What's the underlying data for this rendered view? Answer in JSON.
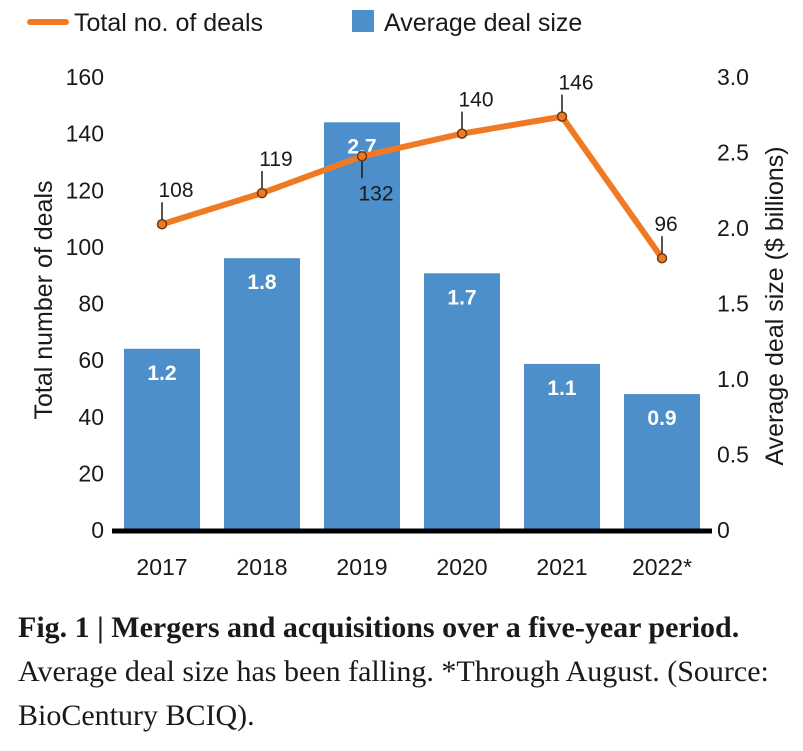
{
  "chart_data": {
    "type": "bar",
    "categories": [
      "2017",
      "2018",
      "2019",
      "2020",
      "2021",
      "2022*"
    ],
    "series": [
      {
        "name": "Total no. of deals",
        "type": "line",
        "axis": "left",
        "values": [
          108,
          119,
          132,
          140,
          146,
          96
        ],
        "labels": [
          "108",
          "119",
          "132",
          "140",
          "146",
          "96"
        ]
      },
      {
        "name": "Average deal size",
        "type": "bar",
        "axis": "right",
        "values": [
          1.2,
          1.8,
          2.7,
          1.7,
          1.1,
          0.9
        ],
        "labels": [
          "1.2",
          "1.8",
          "2.7",
          "1.7",
          "1.1",
          "0.9"
        ]
      }
    ],
    "ylabel": "Total number of deals",
    "y2label": "Average deal size  ($ billions)",
    "ylim": [
      0,
      160
    ],
    "y2lim": [
      0,
      3.0
    ],
    "yticks": [
      "0",
      "20",
      "40",
      "60",
      "80",
      "100",
      "120",
      "140",
      "160"
    ],
    "y2ticks": [
      "0",
      "0.5",
      "1.0",
      "1.5",
      "2.0",
      "2.5",
      "3.0"
    ],
    "grid": false,
    "legend_position": "top-left"
  },
  "colors": {
    "bar": "#4c8fcb",
    "line": "#f07a24",
    "point_fill": "#f07a24",
    "point_stroke": "#6b3a10",
    "axis": "#000000"
  },
  "caption": {
    "figure_label": "Fig. 1 | Mergers and acquisitions over a five-year period.",
    "text": " Average deal size has been falling. *Through August. (Source: BioCentury BCIQ)."
  }
}
